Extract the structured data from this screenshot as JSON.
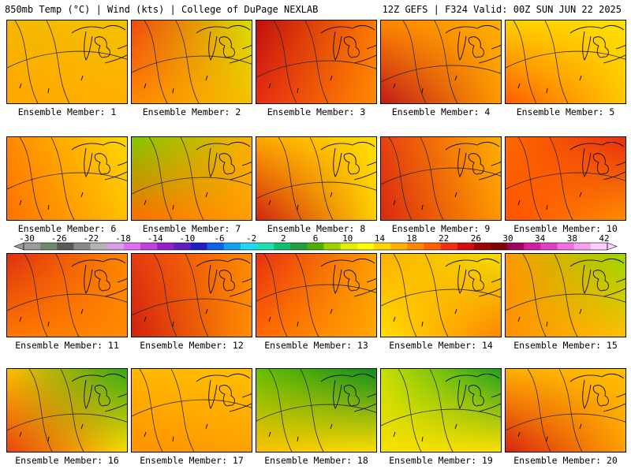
{
  "header": {
    "left": "850mb Temp (°C) | Wind (kts) | College of DuPage NEXLAB",
    "right": "12Z GEFS | F324 Valid: 00Z SUN JUN 22 2025"
  },
  "panels": [
    {
      "label": "Ensemble Member: 1",
      "colors": {
        "tl": "#f5b800",
        "tr": "#f5c200",
        "bl": "#ffa500",
        "br": "#ffb000"
      }
    },
    {
      "label": "Ensemble Member: 2",
      "colors": {
        "tl": "#f04a10",
        "tr": "#d8e000",
        "bl": "#ff8a00",
        "br": "#f5c000"
      }
    },
    {
      "label": "Ensemble Member: 3",
      "colors": {
        "tl": "#c01010",
        "tr": "#ff7a00",
        "bl": "#e83010",
        "br": "#ff8a00"
      }
    },
    {
      "label": "Ensemble Member: 4",
      "colors": {
        "tl": "#ff8800",
        "tr": "#ffb000",
        "bl": "#c01818",
        "br": "#ff9a00"
      }
    },
    {
      "label": "Ensemble Member: 5",
      "colors": {
        "tl": "#ffd000",
        "tr": "#ffe000",
        "bl": "#ff5a00",
        "br": "#ffc800"
      }
    },
    {
      "label": "Ensemble Member: 6",
      "colors": {
        "tl": "#ff8a00",
        "tr": "#ffd800",
        "bl": "#ff7000",
        "br": "#ffc000"
      }
    },
    {
      "label": "Ensemble Member: 7",
      "colors": {
        "tl": "#80c800",
        "tr": "#ffb000",
        "bl": "#ff6a00",
        "br": "#ffa000"
      }
    },
    {
      "label": "Ensemble Member: 8",
      "colors": {
        "tl": "#ffa800",
        "tr": "#ffe000",
        "bl": "#d02010",
        "br": "#ffd000"
      }
    },
    {
      "label": "Ensemble Member: 9",
      "colors": {
        "tl": "#e84010",
        "tr": "#ffb000",
        "bl": "#d82a10",
        "br": "#ff9800"
      }
    },
    {
      "label": "Ensemble Member: 10",
      "colors": {
        "tl": "#ff6a00",
        "tr": "#e83010",
        "bl": "#ff5000",
        "br": "#ff9000"
      }
    },
    {
      "label": "Ensemble Member: 11",
      "colors": {
        "tl": "#e03010",
        "tr": "#ff8a00",
        "bl": "#ff7a00",
        "br": "#ff8800"
      }
    },
    {
      "label": "Ensemble Member: 12",
      "colors": {
        "tl": "#e83a10",
        "tr": "#ff8a00",
        "bl": "#d02010",
        "br": "#ff9000"
      }
    },
    {
      "label": "Ensemble Member: 13",
      "colors": {
        "tl": "#e83010",
        "tr": "#ffa000",
        "bl": "#ff6a00",
        "br": "#ffa800"
      }
    },
    {
      "label": "Ensemble Member: 14",
      "colors": {
        "tl": "#ffb000",
        "tr": "#f0e000",
        "bl": "#ffe000",
        "br": "#ff8000"
      }
    },
    {
      "label": "Ensemble Member: 15",
      "colors": {
        "tl": "#ff9a00",
        "tr": "#9ad800",
        "bl": "#ff9000",
        "br": "#ffc000"
      }
    },
    {
      "label": "Ensemble Member: 16",
      "colors": {
        "tl": "#ffc000",
        "tr": "#30a818",
        "bl": "#e84010",
        "br": "#ffe000"
      }
    },
    {
      "label": "Ensemble Member: 17",
      "colors": {
        "tl": "#ffb800",
        "tr": "#ffc000",
        "bl": "#ff9000",
        "br": "#ffa000"
      }
    },
    {
      "label": "Ensemble Member: 18",
      "colors": {
        "tl": "#68c000",
        "tr": "#108c20",
        "bl": "#ffc000",
        "br": "#ffe000"
      }
    },
    {
      "label": "Ensemble Member: 19",
      "colors": {
        "tl": "#c8e000",
        "tr": "#20a020",
        "bl": "#f8e000",
        "br": "#ffe000"
      }
    },
    {
      "label": "Ensemble Member: 20",
      "colors": {
        "tl": "#ffb000",
        "tr": "#ffc000",
        "bl": "#d82010",
        "br": "#ffa000"
      }
    }
  ],
  "colorbar": {
    "ticks": [
      "-30",
      "-26",
      "-22",
      "-18",
      "-14",
      "-10",
      "-6",
      "-2",
      "2",
      "6",
      "10",
      "14",
      "18",
      "22",
      "26",
      "30",
      "34",
      "38",
      "42"
    ],
    "colors": [
      "#9a9a9a",
      "#6e8a6e",
      "#5a5a5a",
      "#8a8a8a",
      "#b4b4b4",
      "#d8a0e8",
      "#e070f0",
      "#c040e0",
      "#9020c8",
      "#6020c0",
      "#2020c8",
      "#1060e8",
      "#10a0f0",
      "#20d8f0",
      "#20e0b0",
      "#10c070",
      "#20a040",
      "#50b000",
      "#a0d000",
      "#e0f000",
      "#ffff00",
      "#ffd800",
      "#ffb000",
      "#ff8800",
      "#ff6000",
      "#f03010",
      "#d01010",
      "#a00000",
      "#800000",
      "#a00060",
      "#d020a0",
      "#e040c0",
      "#f070e0",
      "#f8a0f0",
      "#ffd0ff"
    ]
  }
}
